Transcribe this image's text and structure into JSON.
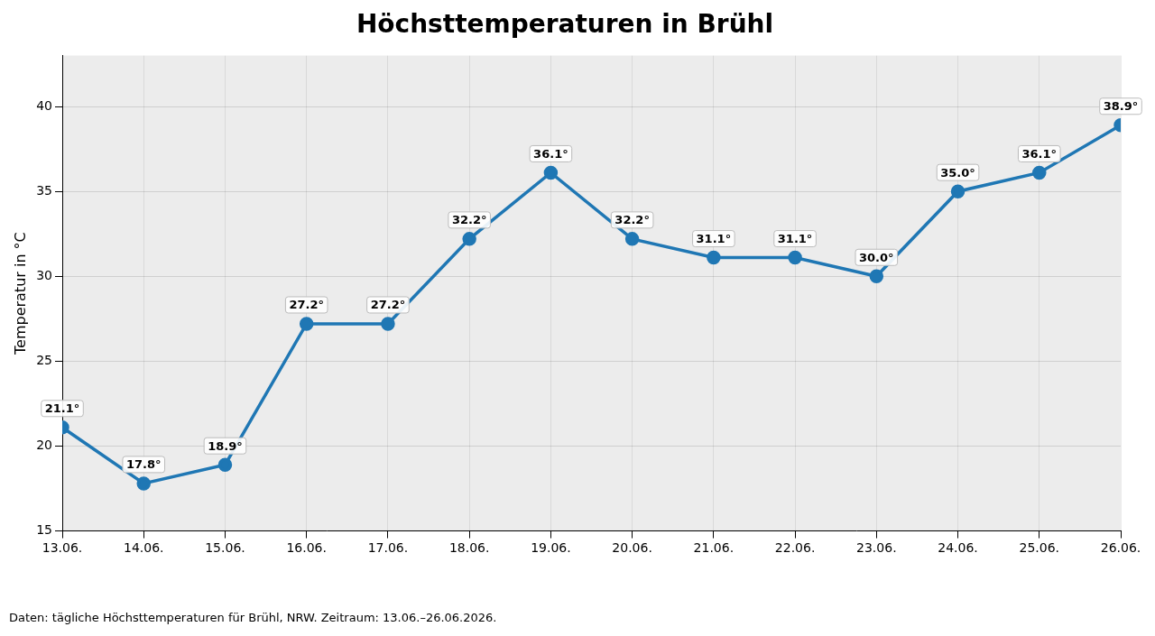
{
  "chart_data": {
    "type": "line",
    "title": "Höchsttemperaturen in Brühl",
    "y_label": "Temperatur in °C",
    "caption": "Daten: tägliche Höchsttemperaturen für Brühl, NRW. Zeitraum: 13.06.–26.06.2026.",
    "categories": [
      "13.06.",
      "14.06.",
      "15.06.",
      "16.06.",
      "17.06.",
      "18.06.",
      "19.06.",
      "20.06.",
      "21.06.",
      "22.06.",
      "23.06.",
      "24.06.",
      "25.06.",
      "26.06."
    ],
    "values": [
      21.1,
      17.8,
      18.9,
      27.2,
      27.2,
      32.2,
      36.1,
      32.2,
      31.1,
      31.1,
      30.0,
      35.0,
      36.1,
      38.9
    ],
    "value_labels": [
      "21.1°",
      "17.8°",
      "18.9°",
      "27.2°",
      "27.2°",
      "32.2°",
      "36.1°",
      "32.2°",
      "31.1°",
      "31.1°",
      "30.0°",
      "35.0°",
      "36.1°",
      "38.9°"
    ],
    "color": "#1f77b4",
    "marker": "circle",
    "line_style": "solid",
    "ylim": [
      15,
      43
    ],
    "yticks": [
      15,
      20,
      25,
      30,
      35,
      40
    ],
    "grid": true,
    "data_labels": true
  }
}
